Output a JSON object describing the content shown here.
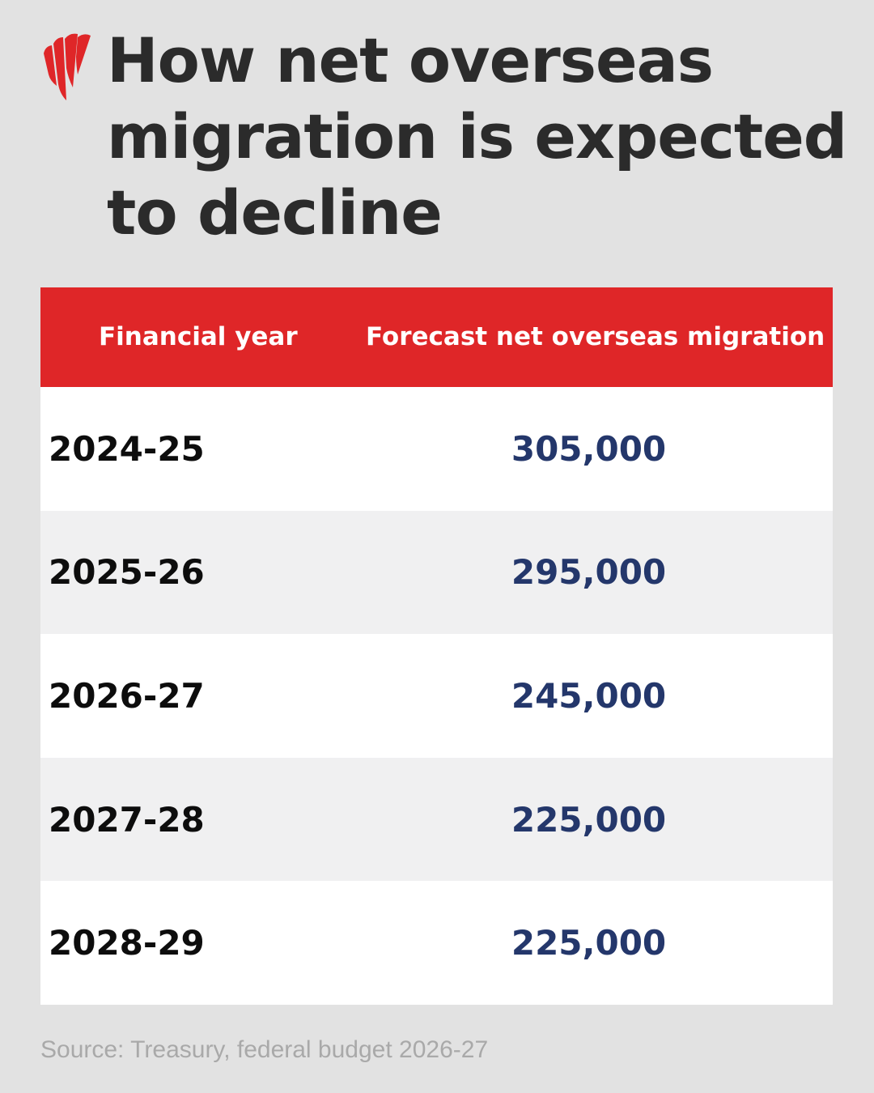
{
  "brand": {
    "logo_icon": "sbs-flame-icon",
    "accent_color": "#df2628"
  },
  "title": "How net overseas migration is expected to decline",
  "colors": {
    "background": "#e2e2e2",
    "header_bg": "#df2628",
    "value_text": "#24376b",
    "row_alt": "#f0f0f1"
  },
  "chart_data": {
    "type": "table",
    "title": "How net overseas migration is expected to decline",
    "columns": [
      "Financial year",
      "Forecast net overseas migration"
    ],
    "rows": [
      {
        "year": "2024-25",
        "value": "305,000"
      },
      {
        "year": "2025-26",
        "value": "295,000"
      },
      {
        "year": "2026-27",
        "value": "245,000"
      },
      {
        "year": "2027-28",
        "value": "225,000"
      },
      {
        "year": "2028-29",
        "value": "225,000"
      }
    ],
    "categories": [
      "2024-25",
      "2025-26",
      "2026-27",
      "2027-28",
      "2028-29"
    ],
    "values": [
      305000,
      295000,
      245000,
      225000,
      225000
    ]
  },
  "source": "Source: Treasury, federal budget 2026-27"
}
